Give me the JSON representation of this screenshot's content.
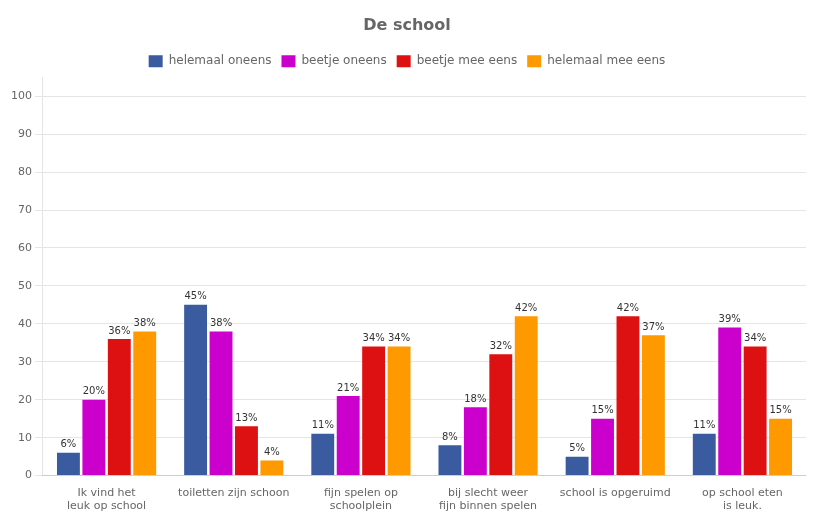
{
  "chart_data": {
    "type": "bar",
    "title": "De school",
    "categories": [
      "Ik vind het\nleuk op school",
      "toiletten zijn schoon",
      "fijn spelen op\nschoolplein",
      "bij slecht weer\nfijn binnen spelen",
      "school is opgeruimd",
      "op school eten\nis leuk."
    ],
    "series": [
      {
        "name": "helemaal oneens",
        "color": "#3A5BA0",
        "values": [
          6,
          45,
          11,
          8,
          5,
          11
        ],
        "value_labels": [
          "6%",
          "45%",
          "11%",
          "8%",
          "5%",
          "11%"
        ]
      },
      {
        "name": "beetje oneens",
        "color": "#CC00CC",
        "values": [
          20,
          38,
          21,
          18,
          15,
          39
        ],
        "value_labels": [
          "20%",
          "38%",
          "21%",
          "18%",
          "15%",
          "39%"
        ]
      },
      {
        "name": "beetje mee eens",
        "color": "#DD1111",
        "values": [
          36,
          13,
          34,
          32,
          42,
          34
        ],
        "value_labels": [
          "36%",
          "13%",
          "34%",
          "32%",
          "42%",
          "34%"
        ]
      },
      {
        "name": "helemaal mee eens",
        "color": "#FF9900",
        "values": [
          38,
          4,
          34,
          42,
          37,
          15
        ],
        "value_labels": [
          "38%",
          "4%",
          "34%",
          "42%",
          "37%",
          "15%"
        ]
      }
    ],
    "ylim": [
      0,
      105
    ],
    "yticks": [
      0,
      10,
      20,
      30,
      40,
      50,
      60,
      70,
      80,
      90,
      100
    ],
    "grid": true,
    "legend": "top",
    "data_labels": true
  }
}
